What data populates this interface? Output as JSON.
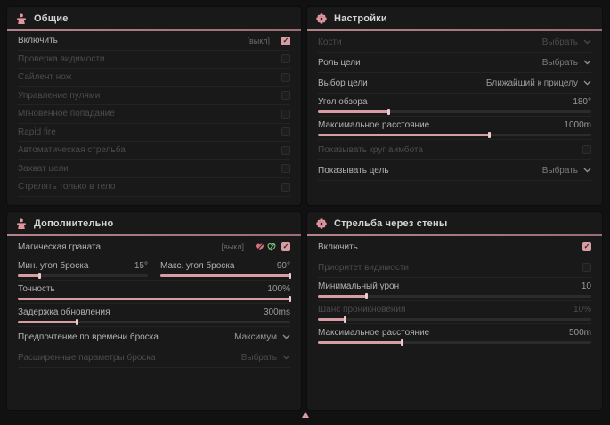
{
  "colors": {
    "accent": "#d89da3",
    "accent_bright": "#edccd0",
    "underline": "#a87c82",
    "green_icon": "#7fc87c",
    "pink_icon": "#d9737f"
  },
  "panels": {
    "general": {
      "title": "Общие",
      "icon": "person-icon",
      "rows": [
        {
          "label": "Включить",
          "suffix": "[выкл]",
          "checked": true
        },
        {
          "label": "Проверка видимости",
          "checked": false
        },
        {
          "label": "Сайлент нож",
          "checked": false
        },
        {
          "label": "Управление пулями",
          "checked": false
        },
        {
          "label": "Мгновенное попадание",
          "checked": false
        },
        {
          "label": "Rapid fire",
          "checked": false
        },
        {
          "label": "Автоматическая стрельба",
          "checked": false
        },
        {
          "label": "Захват цели",
          "checked": false
        },
        {
          "label": "Стрелять только в тело",
          "checked": false
        }
      ]
    },
    "settings": {
      "title": "Настройки",
      "icon": "gear-icon",
      "rows": {
        "bones": {
          "label": "Кости",
          "value": "Выбрать"
        },
        "target_role": {
          "label": "Роль цели",
          "value": "Выбрать"
        },
        "target_select": {
          "label": "Выбор цели",
          "value": "Ближайший к прицелу"
        },
        "fov": {
          "label": "Угол обзора",
          "value": "180°",
          "percent": 26
        },
        "max_distance": {
          "label": "Максимальное расстояние",
          "value": "1000m",
          "percent": 63
        },
        "show_circle": {
          "label": "Показывать круг аимбота",
          "checked": false
        },
        "show_target": {
          "label": "Показывать цель",
          "value": "Выбрать"
        }
      }
    },
    "additional": {
      "title": "Дополнительно",
      "icon": "person-icon",
      "rows": {
        "magic_grenade": {
          "label": "Магическая граната",
          "suffix": "[выкл]",
          "checked": true,
          "icons": [
            "pink-heart-icon",
            "green-heart-icon"
          ]
        },
        "min_angle": {
          "label": "Мин. угол броска",
          "value": "15°",
          "percent": 17
        },
        "max_angle": {
          "label": "Макс. угол броска",
          "value": "90°",
          "percent": 100
        },
        "accuracy": {
          "label": "Точность",
          "value": "100%",
          "percent": 100
        },
        "update_delay": {
          "label": "Задержка обновления",
          "value": "300ms",
          "percent": 22
        },
        "throw_time": {
          "label": "Предпочтение по времени броска",
          "value": "Максимум"
        },
        "advanced": {
          "label": "Расширенные параметры броска",
          "value": "Выбрать"
        }
      }
    },
    "wallbang": {
      "title": "Стрельба через стены",
      "icon": "gear-icon",
      "rows": {
        "enable": {
          "label": "Включить",
          "checked": true
        },
        "visibility": {
          "label": "Приоритет видимости",
          "checked": false
        },
        "min_damage": {
          "label": "Минимальный урон",
          "value": "10",
          "percent": 18
        },
        "pen_chance": {
          "label": "Шанс проникновения",
          "value": "10%",
          "percent": 10
        },
        "max_distance": {
          "label": "Максимальное расстояние",
          "value": "500m",
          "percent": 31
        }
      }
    }
  }
}
